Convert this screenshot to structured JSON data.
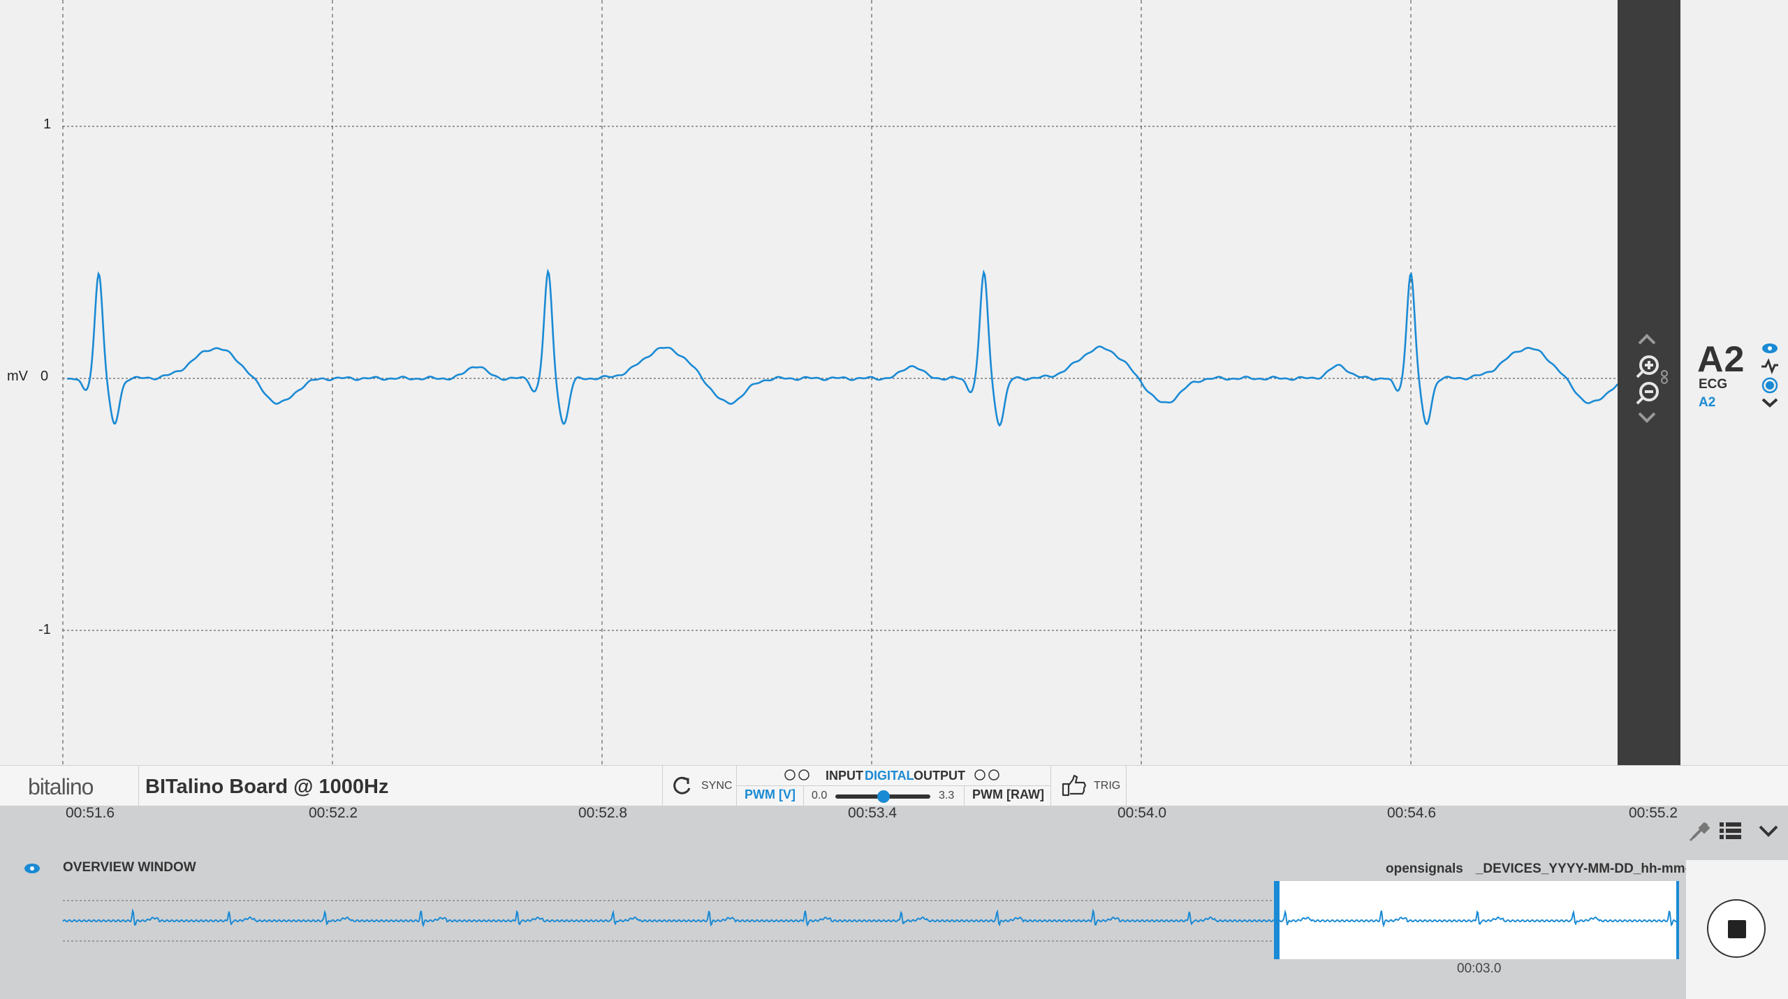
{
  "plot": {
    "unit": "mV",
    "y_ticks": [
      "1",
      "0",
      "-1"
    ]
  },
  "channel": {
    "name": "A2",
    "type": "ECG",
    "port": "A2"
  },
  "toolbar": {
    "logo": "bitalino",
    "device_title": "BITalino Board @ 1000Hz",
    "sync_label": "SYNC",
    "io_input": "INPUT",
    "io_digital": "DIGITAL",
    "io_output": "OUTPUT",
    "pwm_v_label": "PWM [V]",
    "pwm_min": "0.0",
    "pwm_max": "3.3",
    "pwm_raw_label": "PWM [RAW]",
    "trig_label": "TRIG"
  },
  "timeline": {
    "ticks": [
      "00:51.6",
      "00:52.2",
      "00:52.8",
      "00:53.4",
      "00:54.0",
      "00:54.6",
      "00:55.2"
    ]
  },
  "overview": {
    "label": "OVERVIEW WINDOW",
    "app_name": "opensignals",
    "file_name": "_DEVICES_YYYY-MM-DD_hh-mm-ss*",
    "window_time": "00:03.0"
  },
  "chart_data": {
    "type": "line",
    "ylabel": "mV",
    "ylim": [
      -1.4,
      1.5
    ],
    "x_ticks": [
      "00:51.6",
      "00:52.2",
      "00:52.8",
      "00:53.4",
      "00:54.0",
      "00:54.6",
      "00:55.2"
    ],
    "y_ticks": [
      1,
      0,
      -1
    ],
    "grid": true,
    "series": [
      {
        "color": "#1a8ad4",
        "r_peak_times_s": [
          51.68,
          52.68,
          53.65,
          54.6
        ],
        "r_peak_mV": 0.42,
        "s_trough_mV": -0.18,
        "t_wave_mV": 0.12,
        "baseline_mV": 0.0
      }
    ]
  },
  "colors": {
    "signal": "#1a8ad4",
    "zoom_bar": "#3d3d3d",
    "overview_bg": "#cfd0d2"
  }
}
